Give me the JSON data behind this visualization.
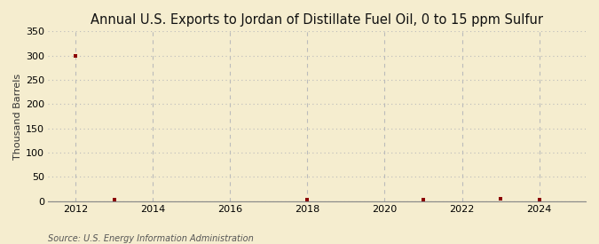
{
  "title": "Annual U.S. Exports to Jordan of Distillate Fuel Oil, 0 to 15 ppm Sulfur",
  "ylabel": "Thousand Barrels",
  "source_text": "Source: U.S. Energy Information Administration",
  "background_color": "#f5edcf",
  "plot_bg_color": "#f5edcf",
  "data_years": [
    2012,
    2013,
    2018,
    2021,
    2023,
    2024
  ],
  "data_values": [
    300,
    2,
    2,
    2,
    5,
    2
  ],
  "marker_color": "#8b0000",
  "marker_size": 3.5,
  "xlim": [
    2011.3,
    2025.2
  ],
  "ylim": [
    0,
    350
  ],
  "yticks": [
    0,
    50,
    100,
    150,
    200,
    250,
    300,
    350
  ],
  "xticks": [
    2012,
    2014,
    2016,
    2018,
    2020,
    2022,
    2024
  ],
  "grid_color": "#bbbbbb",
  "title_fontsize": 10.5,
  "ylabel_fontsize": 8,
  "source_fontsize": 7,
  "tick_fontsize": 8
}
